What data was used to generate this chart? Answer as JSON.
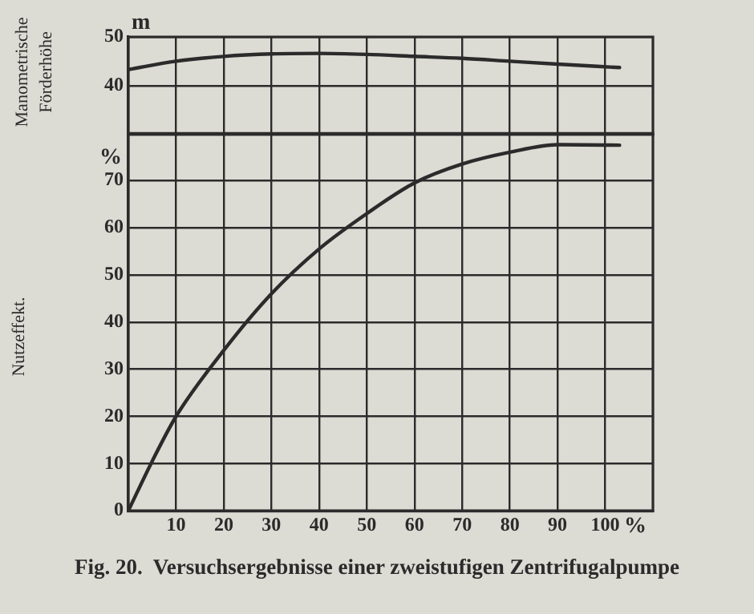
{
  "chart_data": [
    {
      "type": "line",
      "ylabel": "Manometrische Förderhöhe",
      "x": [
        0,
        10,
        20,
        30,
        40,
        50,
        60,
        70,
        80,
        90,
        103
      ],
      "series": [
        {
          "color": "#2b2b2b",
          "values": [
            43.3,
            45,
            46,
            46.5,
            46.6,
            46.4,
            46,
            45.6,
            45,
            44.4,
            43.7
          ]
        }
      ],
      "xlim": [
        0,
        110
      ],
      "xticks": [
        10,
        20,
        30,
        40,
        50,
        60,
        70,
        80,
        90,
        100
      ],
      "ylim": [
        30,
        50
      ],
      "yticks": [
        40,
        50
      ],
      "grid": true,
      "tick_labels": "y",
      "marker": "none",
      "annotations": [
        "m"
      ]
    },
    {
      "type": "line",
      "ylabel": "Nutzeffekt.",
      "x": [
        0,
        5,
        10,
        20,
        30,
        40,
        50,
        60,
        70,
        80,
        90,
        103
      ],
      "series": [
        {
          "color": "#2b2b2b",
          "values": [
            0,
            10.5,
            20,
            34,
            46,
            55.5,
            63,
            69.5,
            73.5,
            76,
            77.6,
            77.5
          ]
        }
      ],
      "xlim": [
        0,
        110
      ],
      "xticks": [
        10,
        20,
        30,
        40,
        50,
        60,
        70,
        80,
        90,
        100
      ],
      "ylim": [
        0,
        80
      ],
      "yticks": [
        0,
        10,
        20,
        30,
        40,
        50,
        60,
        70
      ],
      "grid": true,
      "marker": "none",
      "annotations": [
        "%",
        "%",
        "Fig. 20.  Versuchsergebnisse einer zweistufigen Zentrifugalpumpe"
      ]
    }
  ]
}
